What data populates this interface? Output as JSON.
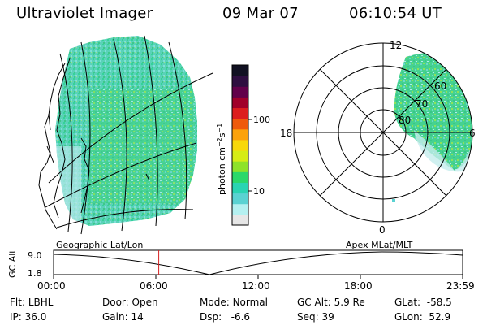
{
  "header": {
    "title": "Ultraviolet Imager",
    "date": "09 Mar 07",
    "time": "06:10:54 UT"
  },
  "colorbar": {
    "label": "photon cm-2s-1",
    "ticks": [
      "100",
      "10"
    ],
    "colors": [
      "#e6e6e6",
      "#b4f0f0",
      "#5ad2d2",
      "#2ad4b2",
      "#2bd86a",
      "#8ee22a",
      "#d6ec16",
      "#f8d80a",
      "#fba20c",
      "#ee5a0c",
      "#dc1e1e",
      "#a0002a",
      "#62004a",
      "#2e0e40",
      "#111122"
    ]
  },
  "polar": {
    "labels": {
      "top": "12",
      "bottom": "0",
      "left": "18",
      "right": "6"
    },
    "rings": [
      "60",
      "70",
      "80"
    ]
  },
  "strip": {
    "left_label": "Geographic Lat/Lon",
    "right_label": "Apex MLat/MLT",
    "y_label": "GC Alt",
    "y_ticks": [
      "9.0",
      "1.8"
    ],
    "x_ticks": [
      "00:00",
      "06:00",
      "12:00",
      "18:00",
      "23:59"
    ],
    "current_time": "06:10",
    "marker_color": "#d42020"
  },
  "info": {
    "flt": {
      "label": "Flt:",
      "value": "LBHL"
    },
    "ip": {
      "label": "IP:",
      "value": "36.0"
    },
    "door": {
      "label": "Door:",
      "value": "Open"
    },
    "gain": {
      "label": "Gain:",
      "value": "14"
    },
    "mode": {
      "label": "Mode:",
      "value": "Normal"
    },
    "dsp": {
      "label": "Dsp:",
      "value": "-6.6"
    },
    "gcalt": {
      "label": "GC Alt:",
      "value": "5.9 Re"
    },
    "seq": {
      "label": "Seq:",
      "value": "39"
    },
    "glat": {
      "label": "GLat:",
      "value": "-58.5"
    },
    "glon": {
      "label": "GLon:",
      "value": "52.9"
    }
  }
}
